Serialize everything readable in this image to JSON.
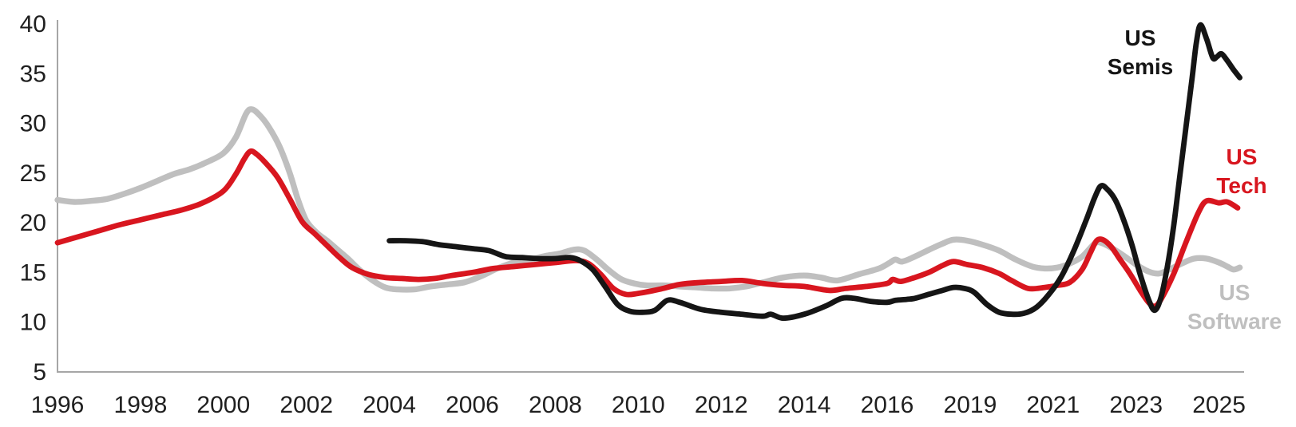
{
  "chart_data": {
    "type": "line",
    "title": "",
    "xlabel": "",
    "ylabel": "",
    "ylim": [
      5,
      40
    ],
    "yticks": [
      40,
      35,
      30,
      25,
      20,
      15,
      10,
      5
    ],
    "xticks": [
      1996,
      1998,
      2000,
      2002,
      2004,
      2006,
      2008,
      2010,
      2012,
      2014,
      2016,
      2019,
      2021,
      2023,
      2025
    ],
    "grid": false,
    "legend_position": "direct-line-labels-right",
    "axis_color": "#a6a6a6",
    "tick_label_color": "#1f1f1f",
    "background_color": "#ffffff",
    "series": [
      {
        "name": "US Software",
        "label_lines": [
          "US",
          "Software"
        ],
        "color": "#bfbfbf",
        "points": [
          [
            1996.0,
            22.3
          ],
          [
            1996.4,
            22.1
          ],
          [
            1996.8,
            22.2
          ],
          [
            1997.2,
            22.4
          ],
          [
            1997.6,
            22.9
          ],
          [
            1998.0,
            23.5
          ],
          [
            1998.4,
            24.2
          ],
          [
            1998.8,
            24.9
          ],
          [
            1999.2,
            25.4
          ],
          [
            1999.6,
            26.1
          ],
          [
            2000.0,
            27.0
          ],
          [
            2000.3,
            28.6
          ],
          [
            2000.55,
            31.0
          ],
          [
            2000.7,
            31.4
          ],
          [
            2000.9,
            30.7
          ],
          [
            2001.1,
            29.6
          ],
          [
            2001.35,
            27.7
          ],
          [
            2001.6,
            25.0
          ],
          [
            2001.8,
            22.3
          ],
          [
            2002.0,
            20.2
          ],
          [
            2002.25,
            19.0
          ],
          [
            2002.5,
            18.2
          ],
          [
            2002.75,
            17.3
          ],
          [
            2003.0,
            16.4
          ],
          [
            2003.3,
            15.2
          ],
          [
            2003.6,
            14.2
          ],
          [
            2003.9,
            13.5
          ],
          [
            2004.2,
            13.3
          ],
          [
            2004.6,
            13.3
          ],
          [
            2005.0,
            13.6
          ],
          [
            2005.4,
            13.8
          ],
          [
            2005.8,
            14.0
          ],
          [
            2006.2,
            14.6
          ],
          [
            2006.6,
            15.4
          ],
          [
            2007.0,
            16.0
          ],
          [
            2007.4,
            16.3
          ],
          [
            2007.8,
            16.7
          ],
          [
            2008.1,
            16.9
          ],
          [
            2008.45,
            17.3
          ],
          [
            2008.7,
            17.2
          ],
          [
            2009.0,
            16.3
          ],
          [
            2009.3,
            15.2
          ],
          [
            2009.6,
            14.3
          ],
          [
            2009.9,
            13.9
          ],
          [
            2010.2,
            13.7
          ],
          [
            2010.6,
            13.7
          ],
          [
            2011.0,
            13.6
          ],
          [
            2011.4,
            13.5
          ],
          [
            2011.8,
            13.4
          ],
          [
            2012.2,
            13.4
          ],
          [
            2012.6,
            13.6
          ],
          [
            2013.0,
            14.0
          ],
          [
            2013.5,
            14.5
          ],
          [
            2014.0,
            14.7
          ],
          [
            2014.4,
            14.5
          ],
          [
            2014.8,
            14.2
          ],
          [
            2015.3,
            14.8
          ],
          [
            2015.8,
            15.4
          ],
          [
            2016.1,
            16.0
          ],
          [
            2016.3,
            16.3
          ],
          [
            2016.55,
            16.1
          ],
          [
            2017.0,
            16.6
          ],
          [
            2017.6,
            17.4
          ],
          [
            2018.0,
            17.9
          ],
          [
            2018.4,
            18.3
          ],
          [
            2018.9,
            18.2
          ],
          [
            2019.3,
            17.8
          ],
          [
            2019.7,
            17.2
          ],
          [
            2020.1,
            16.3
          ],
          [
            2020.5,
            15.6
          ],
          [
            2020.8,
            15.4
          ],
          [
            2021.1,
            15.5
          ],
          [
            2021.4,
            15.9
          ],
          [
            2021.7,
            16.6
          ],
          [
            2022.0,
            17.9
          ],
          [
            2022.15,
            18.0
          ],
          [
            2022.4,
            17.5
          ],
          [
            2022.7,
            16.7
          ],
          [
            2023.0,
            15.8
          ],
          [
            2023.3,
            15.1
          ],
          [
            2023.55,
            14.9
          ],
          [
            2023.8,
            15.3
          ],
          [
            2024.1,
            15.9
          ],
          [
            2024.4,
            16.4
          ],
          [
            2024.7,
            16.4
          ],
          [
            2025.0,
            16.0
          ],
          [
            2025.2,
            15.6
          ],
          [
            2025.35,
            15.3
          ],
          [
            2025.5,
            15.5
          ]
        ]
      },
      {
        "name": "US Tech",
        "label_lines": [
          "US",
          "Tech"
        ],
        "color": "#d8161f",
        "points": [
          [
            1996.0,
            18.0
          ],
          [
            1996.5,
            18.6
          ],
          [
            1997.0,
            19.2
          ],
          [
            1997.5,
            19.8
          ],
          [
            1998.0,
            20.3
          ],
          [
            1998.5,
            20.8
          ],
          [
            1999.0,
            21.3
          ],
          [
            1999.5,
            22.0
          ],
          [
            2000.0,
            23.2
          ],
          [
            2000.3,
            24.9
          ],
          [
            2000.5,
            26.4
          ],
          [
            2000.65,
            27.2
          ],
          [
            2000.8,
            26.9
          ],
          [
            2001.0,
            26.1
          ],
          [
            2001.3,
            24.6
          ],
          [
            2001.6,
            22.4
          ],
          [
            2001.9,
            20.1
          ],
          [
            2002.2,
            18.9
          ],
          [
            2002.5,
            17.7
          ],
          [
            2002.8,
            16.5
          ],
          [
            2003.1,
            15.5
          ],
          [
            2003.5,
            14.8
          ],
          [
            2003.9,
            14.5
          ],
          [
            2004.3,
            14.4
          ],
          [
            2004.7,
            14.3
          ],
          [
            2005.1,
            14.4
          ],
          [
            2005.5,
            14.7
          ],
          [
            2006.0,
            15.0
          ],
          [
            2006.5,
            15.4
          ],
          [
            2007.0,
            15.6
          ],
          [
            2007.5,
            15.8
          ],
          [
            2008.0,
            16.0
          ],
          [
            2008.5,
            16.2
          ],
          [
            2008.8,
            15.9
          ],
          [
            2009.1,
            14.8
          ],
          [
            2009.4,
            13.4
          ],
          [
            2009.7,
            12.8
          ],
          [
            2010.0,
            12.9
          ],
          [
            2010.5,
            13.3
          ],
          [
            2011.0,
            13.8
          ],
          [
            2011.5,
            14.0
          ],
          [
            2012.0,
            14.1
          ],
          [
            2012.5,
            14.2
          ],
          [
            2013.0,
            13.9
          ],
          [
            2013.5,
            13.7
          ],
          [
            2014.0,
            13.6
          ],
          [
            2014.6,
            13.2
          ],
          [
            2015.0,
            13.4
          ],
          [
            2015.5,
            13.6
          ],
          [
            2016.0,
            13.9
          ],
          [
            2016.2,
            14.3
          ],
          [
            2016.5,
            14.1
          ],
          [
            2017.0,
            14.5
          ],
          [
            2017.5,
            15.0
          ],
          [
            2018.0,
            15.7
          ],
          [
            2018.4,
            16.1
          ],
          [
            2018.9,
            15.8
          ],
          [
            2019.3,
            15.5
          ],
          [
            2019.7,
            14.9
          ],
          [
            2020.0,
            14.2
          ],
          [
            2020.4,
            13.4
          ],
          [
            2020.8,
            13.5
          ],
          [
            2021.1,
            13.7
          ],
          [
            2021.4,
            14.0
          ],
          [
            2021.7,
            15.3
          ],
          [
            2021.9,
            17.0
          ],
          [
            2022.05,
            18.2
          ],
          [
            2022.2,
            18.3
          ],
          [
            2022.4,
            17.6
          ],
          [
            2022.6,
            16.4
          ],
          [
            2022.85,
            14.9
          ],
          [
            2023.1,
            13.2
          ],
          [
            2023.3,
            12.0
          ],
          [
            2023.45,
            11.6
          ],
          [
            2023.6,
            12.3
          ],
          [
            2023.9,
            14.8
          ],
          [
            2024.2,
            18.0
          ],
          [
            2024.5,
            21.0
          ],
          [
            2024.7,
            22.2
          ],
          [
            2025.0,
            22.0
          ],
          [
            2025.2,
            22.1
          ],
          [
            2025.45,
            21.5
          ]
        ]
      },
      {
        "name": "US Semis",
        "label_lines": [
          "US",
          "Semis"
        ],
        "color": "#151515",
        "points": [
          [
            2004.0,
            18.2
          ],
          [
            2004.4,
            18.2
          ],
          [
            2004.8,
            18.1
          ],
          [
            2005.2,
            17.8
          ],
          [
            2005.6,
            17.6
          ],
          [
            2006.0,
            17.4
          ],
          [
            2006.4,
            17.2
          ],
          [
            2006.8,
            16.6
          ],
          [
            2007.2,
            16.5
          ],
          [
            2007.6,
            16.4
          ],
          [
            2008.0,
            16.4
          ],
          [
            2008.35,
            16.5
          ],
          [
            2008.6,
            16.2
          ],
          [
            2008.9,
            15.3
          ],
          [
            2009.2,
            13.6
          ],
          [
            2009.5,
            11.8
          ],
          [
            2009.8,
            11.1
          ],
          [
            2010.1,
            11.0
          ],
          [
            2010.4,
            11.2
          ],
          [
            2010.7,
            12.2
          ],
          [
            2011.0,
            12.0
          ],
          [
            2011.5,
            11.3
          ],
          [
            2012.0,
            11.0
          ],
          [
            2012.5,
            10.8
          ],
          [
            2013.0,
            10.6
          ],
          [
            2013.2,
            10.8
          ],
          [
            2013.5,
            10.4
          ],
          [
            2014.0,
            10.8
          ],
          [
            2014.5,
            11.6
          ],
          [
            2014.9,
            12.4
          ],
          [
            2015.2,
            12.4
          ],
          [
            2015.6,
            12.1
          ],
          [
            2016.0,
            12.0
          ],
          [
            2016.3,
            12.2
          ],
          [
            2016.7,
            12.3
          ],
          [
            2017.0,
            12.4
          ],
          [
            2017.5,
            12.8
          ],
          [
            2018.0,
            13.2
          ],
          [
            2018.4,
            13.5
          ],
          [
            2018.8,
            13.4
          ],
          [
            2019.1,
            13.0
          ],
          [
            2019.4,
            11.8
          ],
          [
            2019.7,
            11.0
          ],
          [
            2020.0,
            10.8
          ],
          [
            2020.3,
            10.9
          ],
          [
            2020.6,
            11.5
          ],
          [
            2020.9,
            12.8
          ],
          [
            2021.2,
            14.6
          ],
          [
            2021.5,
            17.2
          ],
          [
            2021.8,
            20.3
          ],
          [
            2022.0,
            22.5
          ],
          [
            2022.15,
            23.7
          ],
          [
            2022.3,
            23.4
          ],
          [
            2022.5,
            22.3
          ],
          [
            2022.7,
            20.3
          ],
          [
            2022.9,
            17.8
          ],
          [
            2023.1,
            14.8
          ],
          [
            2023.3,
            12.3
          ],
          [
            2023.45,
            11.2
          ],
          [
            2023.6,
            12.5
          ],
          [
            2023.75,
            15.5
          ],
          [
            2023.9,
            19.5
          ],
          [
            2024.05,
            24.5
          ],
          [
            2024.2,
            29.5
          ],
          [
            2024.35,
            34.5
          ],
          [
            2024.45,
            38.0
          ],
          [
            2024.55,
            39.9
          ],
          [
            2024.7,
            38.5
          ],
          [
            2024.85,
            36.6
          ],
          [
            2024.95,
            36.7
          ],
          [
            2025.06,
            37.0
          ],
          [
            2025.2,
            36.3
          ],
          [
            2025.35,
            35.4
          ],
          [
            2025.5,
            34.6
          ]
        ]
      }
    ]
  }
}
